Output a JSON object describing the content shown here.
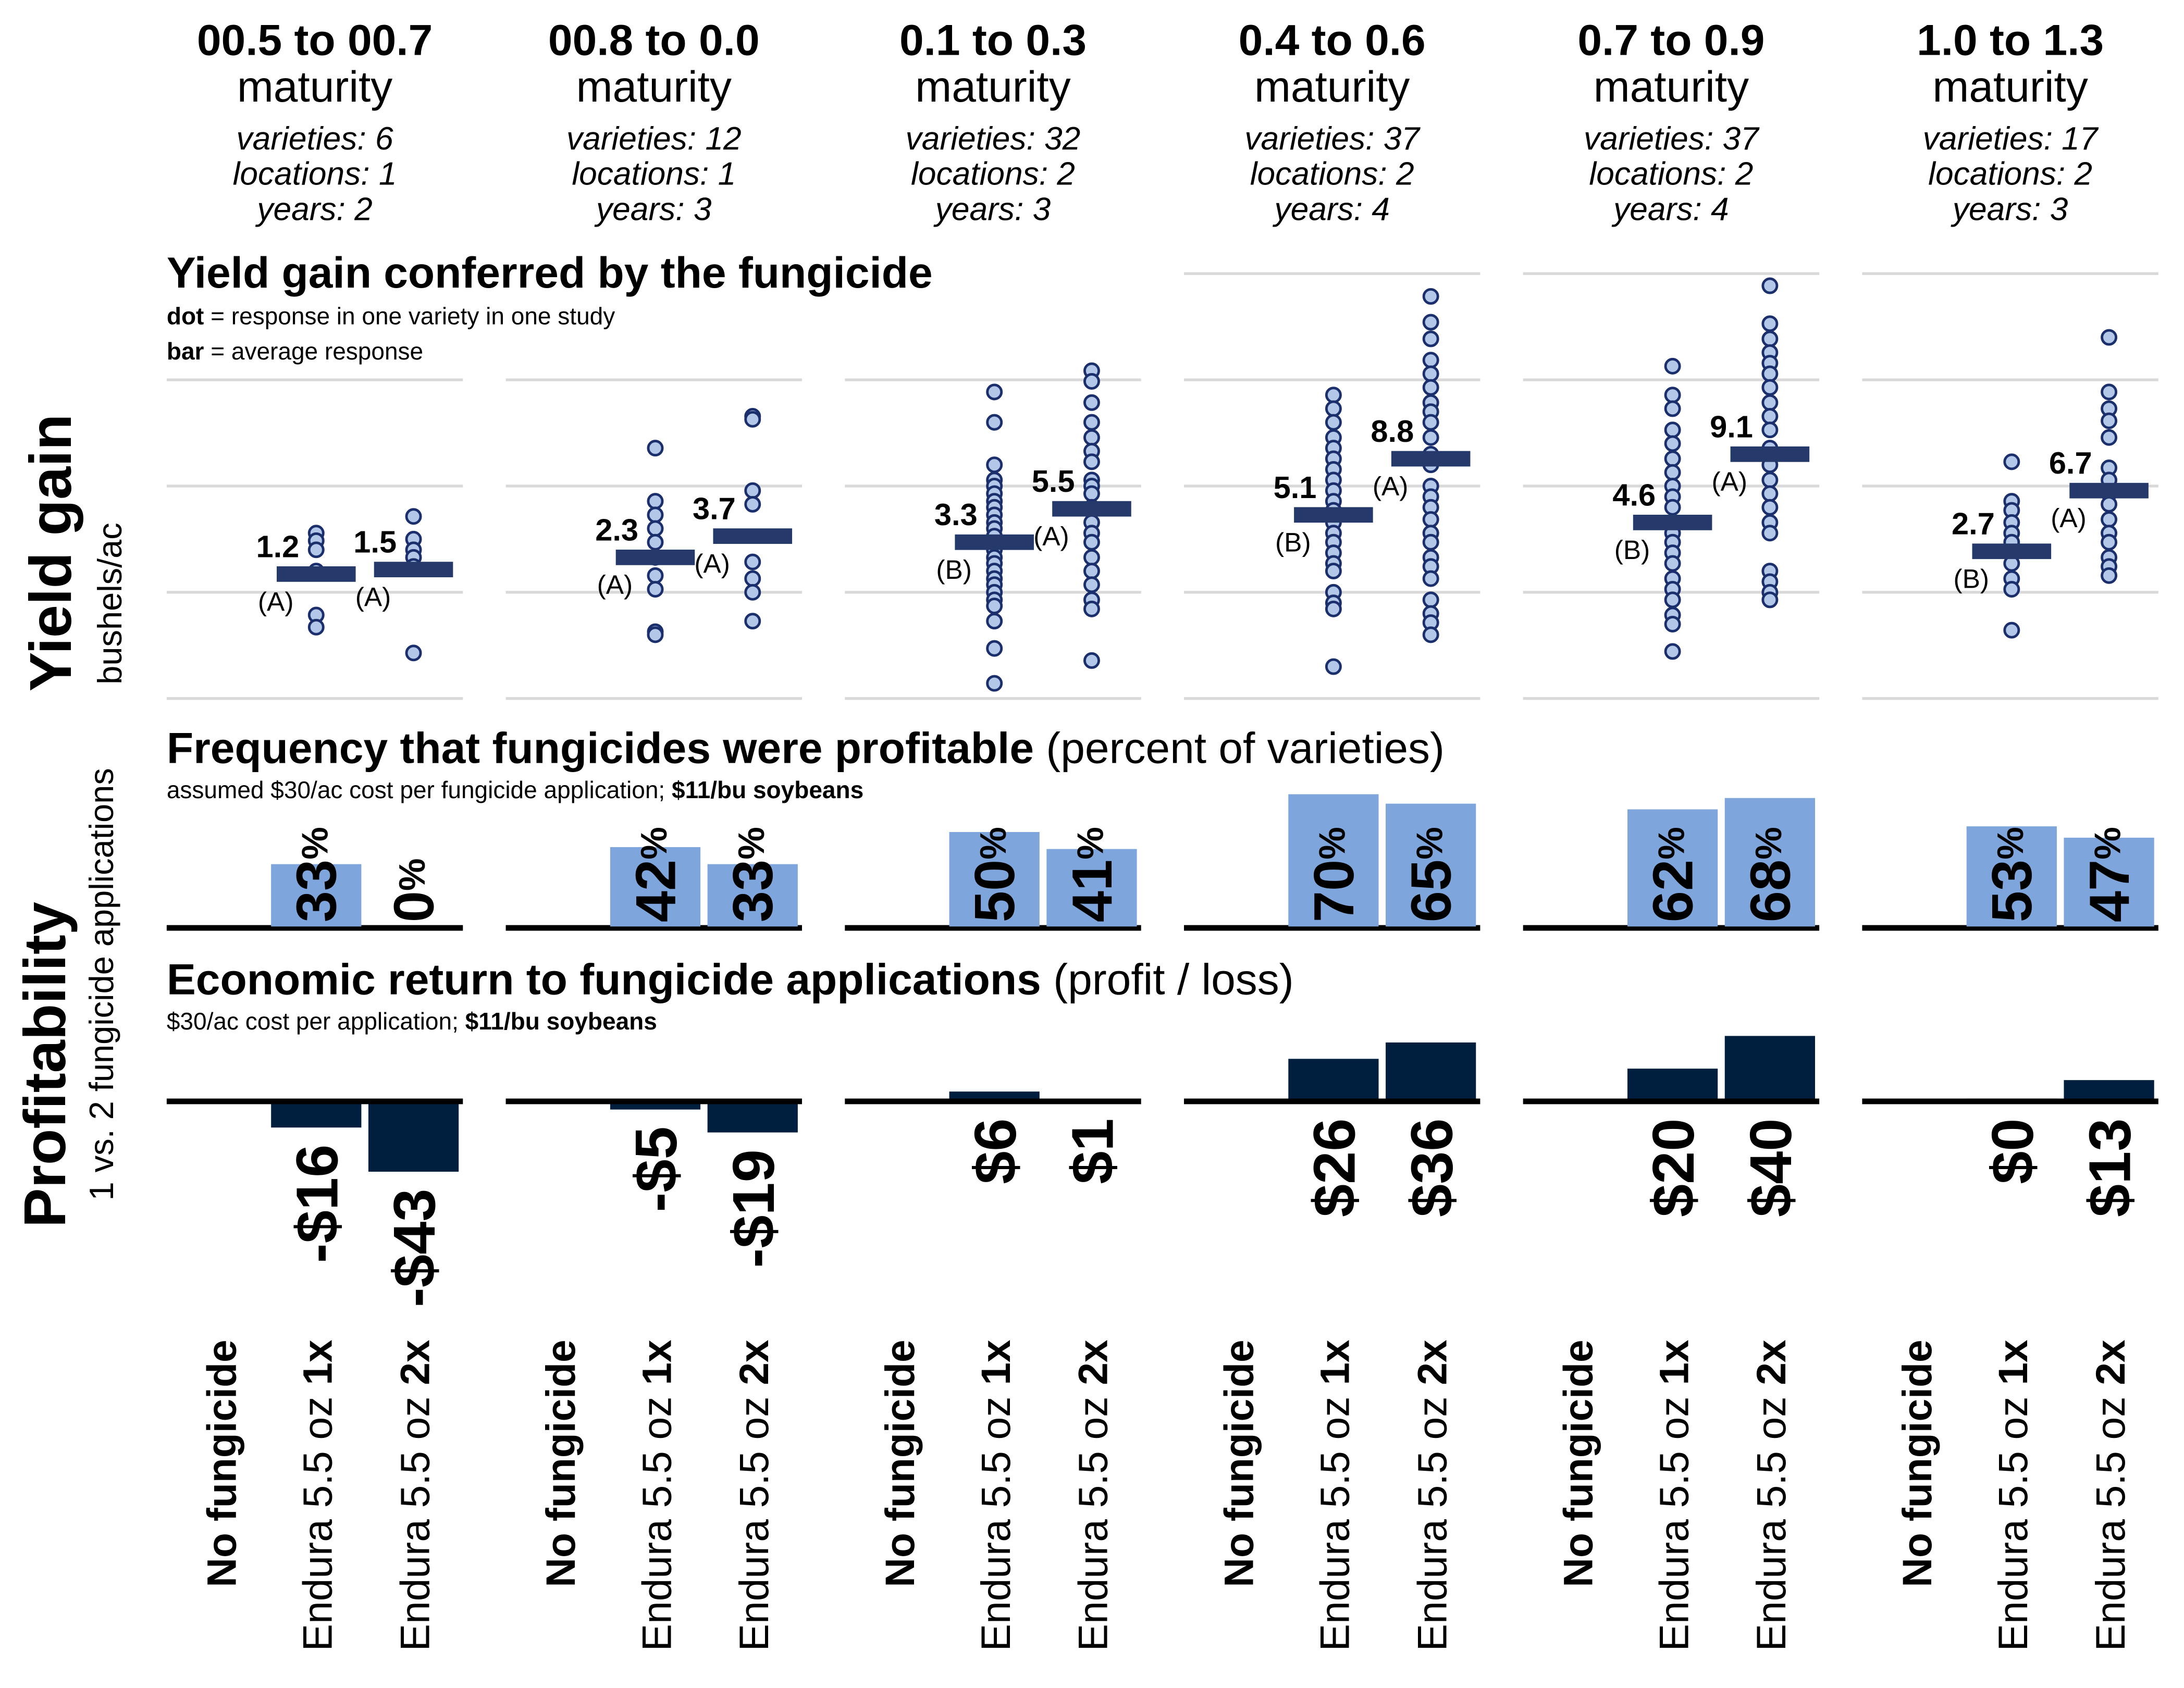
{
  "axes": {
    "yield_title": "Yield gain",
    "yield_unit": "bushels/ac",
    "profit_title": "Profitability",
    "profit_sub": "1 vs. 2 fungicide applications"
  },
  "sections": {
    "yield_title": "Yield gain conferred by the fungicide",
    "yield_note1_bold": "dot",
    "yield_note1_rest": " = response in one variety in one study",
    "yield_note2_bold": "bar",
    "yield_note2_rest": " = average response",
    "freq_title_bold": "Frequency that fungicides were profitable",
    "freq_title_rest": " (percent of varieties)",
    "freq_sub_plain": "assumed $30/ac cost per fungicide application; ",
    "freq_sub_bold": "$11/bu soybeans",
    "econ_title_bold": "Economic return to fungicide applications",
    "econ_title_rest": " (profit / loss)",
    "econ_sub_plain": "$30/ac cost per application; ",
    "econ_sub_bold": "$11/bu soybeans"
  },
  "treatments": [
    {
      "plain": "",
      "bold": "No fungicide"
    },
    {
      "plain": "Endura 5.5 oz ",
      "bold": "1x"
    },
    {
      "plain": "Endura 5.5 oz ",
      "bold": "2x"
    }
  ],
  "groups": [
    {
      "range": "00.5 to 00.7",
      "label": "maturity",
      "varieties": "varieties:  6",
      "locations": "locations:  1",
      "years": "years:  2"
    },
    {
      "range": "00.8 to 0.0",
      "label": "maturity",
      "varieties": "varieties:  12",
      "locations": "locations:  1",
      "years": "years:  3"
    },
    {
      "range": "0.1 to 0.3",
      "label": "maturity",
      "varieties": "varieties:  32",
      "locations": "locations:  2",
      "years": "years:  3"
    },
    {
      "range": "0.4 to 0.6",
      "label": "maturity",
      "varieties": "varieties:  37",
      "locations": "locations:  2",
      "years": "years:  4"
    },
    {
      "range": "0.7 to 0.9",
      "label": "maturity",
      "varieties": "varieties:  37",
      "locations": "locations:  2",
      "years": "years:  4"
    },
    {
      "range": "1.0 to 1.3",
      "label": "maturity",
      "varieties": "varieties:  17",
      "locations": "locations:  2",
      "years": "years:  3"
    }
  ],
  "colors": {
    "dot_fill": "#b3c7e8",
    "dot_stroke": "#1a2f6b",
    "mean_bar": "#253a6b",
    "freq_bar": "#7ea6dc",
    "econ_bar": "#001f3f",
    "grid": "#d9d9d9"
  },
  "chart_data": [
    {
      "type": "scatter",
      "title": "Yield gain conferred by the fungicide",
      "ylabel": "Yield gain bushels/ac",
      "ylim": [
        -7,
        21
      ],
      "grid": true,
      "panels": [
        {
          "series": [
            {
              "treatment": "Endura 5.5 oz 1x",
              "mean": "1.2",
              "mean_value": 1.2,
              "letter": "(A)",
              "points": [
                3.9,
                3.4,
                2.8,
                1.4,
                -1.5,
                -2.3
              ]
            },
            {
              "treatment": "Endura 5.5 oz 2x",
              "mean": "1.5",
              "mean_value": 1.5,
              "letter": "(A)",
              "points": [
                5.0,
                3.5,
                2.8,
                2.3,
                1.7,
                -4.0
              ]
            }
          ]
        },
        {
          "series": [
            {
              "treatment": "Endura 5.5 oz 1x",
              "mean": "2.3",
              "mean_value": 2.3,
              "letter": "(A)",
              "points": [
                9.5,
                6.0,
                5.1,
                4.2,
                3.3,
                2.3,
                1.1,
                0.2,
                -2.6,
                -2.8
              ]
            },
            {
              "treatment": "Endura 5.5 oz 2x",
              "mean": "3.7",
              "mean_value": 3.7,
              "letter": "(A)",
              "points": [
                11.6,
                11.4,
                6.7,
                5.8,
                2.0,
                0.9,
                0,
                -1.9
              ]
            }
          ]
        },
        {
          "series": [
            {
              "treatment": "Endura 5.5 oz 1x",
              "mean": "3.3",
              "mean_value": 3.3,
              "letter": "(B)",
              "points": [
                13.2,
                11.2,
                8.4,
                7.4,
                7.0,
                6.5,
                6.0,
                5.6,
                5.1,
                4.6,
                4.2,
                3.7,
                2.8,
                2.3,
                1.9,
                1.4,
                0.9,
                0.5,
                0,
                -0.5,
                -0.9,
                -1.9,
                -3.7,
                -6.0
              ]
            },
            {
              "treatment": "Endura 5.5 oz 2x",
              "mean": "5.5",
              "mean_value": 5.5,
              "letter": "(A)",
              "points": [
                14.6,
                13.9,
                12.5,
                11.2,
                10.2,
                9.3,
                8.6,
                7.4,
                7.0,
                6.5,
                5.6,
                4.6,
                3.9,
                3.3,
                2.3,
                1.4,
                0.5,
                -0.5,
                -1.1,
                -4.5
              ]
            }
          ]
        },
        {
          "series": [
            {
              "treatment": "Endura 5.5 oz 1x",
              "mean": "5.1",
              "mean_value": 5.1,
              "letter": "(B)",
              "points": [
                13.0,
                12.1,
                11.2,
                10.2,
                9.5,
                8.8,
                8.1,
                7.4,
                6.7,
                6.0,
                5.4,
                4.6,
                3.9,
                3.3,
                2.6,
                1.9,
                1.4,
                0,
                -0.7,
                -1.1,
                -4.9
              ]
            },
            {
              "treatment": "Endura 5.5 oz 2x",
              "mean": "8.8",
              "mean_value": 8.8,
              "letter": "(A)",
              "points": [
                19.5,
                17.8,
                16.7,
                15.3,
                14.4,
                13.5,
                12.5,
                11.9,
                11.2,
                10.2,
                9.1,
                8.4,
                7.0,
                6.3,
                5.6,
                4.8,
                3.9,
                3.3,
                2.3,
                1.7,
                0.9,
                -0.5,
                -1.4,
                -2.0,
                -2.8
              ]
            }
          ]
        },
        {
          "series": [
            {
              "treatment": "Endura 5.5 oz 1x",
              "mean": "4.6",
              "mean_value": 4.6,
              "letter": "(B)",
              "points": [
                14.9,
                13.0,
                12.1,
                10.7,
                9.8,
                8.8,
                7.9,
                7.0,
                6.3,
                5.6,
                4.6,
                3.9,
                3.3,
                2.6,
                1.9,
                0.9,
                0.2,
                -0.5,
                -1.5,
                -2.1,
                -3.9
              ]
            },
            {
              "treatment": "Endura 5.5 oz 2x",
              "mean": "9.1",
              "mean_value": 9.1,
              "letter": "(A)",
              "points": [
                20.2,
                17.7,
                16.7,
                15.8,
                15.1,
                14.4,
                13.5,
                12.5,
                11.6,
                10.7,
                9.5,
                8.4,
                7.4,
                6.5,
                5.6,
                4.6,
                3.9,
                1.4,
                0.7,
                0,
                -0.5
              ]
            }
          ]
        },
        {
          "series": [
            {
              "treatment": "Endura 5.5 oz 1x",
              "mean": "2.7",
              "mean_value": 2.7,
              "letter": "(B)",
              "points": [
                8.6,
                6.0,
                5.4,
                4.6,
                3.9,
                3.3,
                2.6,
                1.9,
                0.9,
                0.2,
                -2.5
              ]
            },
            {
              "treatment": "Endura 5.5 oz 2x",
              "mean": "6.7",
              "mean_value": 6.7,
              "letter": "(A)",
              "points": [
                16.8,
                13.2,
                12.1,
                11.3,
                10.2,
                8.2,
                7.4,
                6.5,
                5.8,
                4.8,
                3.9,
                3.3,
                2.3,
                1.7,
                1.1
              ]
            }
          ]
        }
      ]
    },
    {
      "type": "bar",
      "title": "Frequency that fungicides were profitable (percent of varieties)",
      "unit": "%",
      "ylim": [
        0,
        75
      ],
      "categories": [
        "Endura 5.5 oz 1x",
        "Endura 5.5 oz 2x"
      ],
      "values": [
        [
          33,
          0
        ],
        [
          42,
          33
        ],
        [
          50,
          41
        ],
        [
          70,
          65
        ],
        [
          62,
          68
        ],
        [
          53,
          47
        ]
      ],
      "labels": [
        [
          "33",
          "0"
        ],
        [
          "42",
          "33"
        ],
        [
          "50",
          "41"
        ],
        [
          "70",
          "65"
        ],
        [
          "62",
          "68"
        ],
        [
          "53",
          "47"
        ]
      ]
    },
    {
      "type": "bar",
      "title": "Economic return to fungicide applications (profit / loss)",
      "unit": "$/ac",
      "categories": [
        "Endura 5.5 oz 1x",
        "Endura 5.5 oz 2x"
      ],
      "values": [
        [
          -16,
          -43
        ],
        [
          -5,
          -19
        ],
        [
          6,
          1
        ],
        [
          26,
          36
        ],
        [
          20,
          40
        ],
        [
          0,
          13
        ]
      ],
      "labels": [
        [
          "-$16",
          "-$43"
        ],
        [
          "-$5",
          "-$19"
        ],
        [
          "$6",
          "$1"
        ],
        [
          "$26",
          "$36"
        ],
        [
          "$20",
          "$40"
        ],
        [
          "$0",
          "$13"
        ]
      ]
    }
  ]
}
